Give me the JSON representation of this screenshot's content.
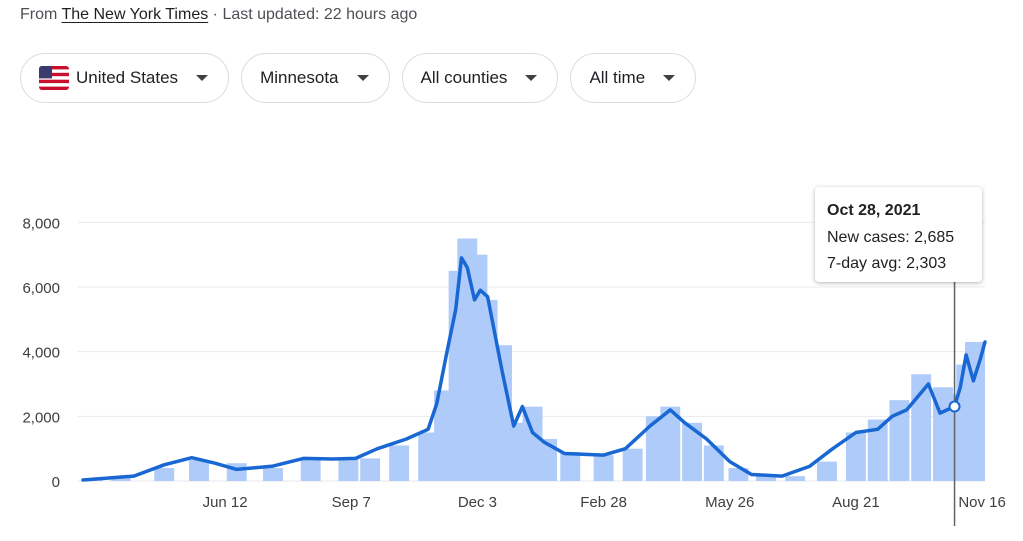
{
  "header": {
    "source_prefix": "From",
    "source_name": "The New York Times",
    "updated": "· Last updated: 22 hours ago"
  },
  "filters": [
    {
      "label": "United States",
      "icon": "us-flag-icon"
    },
    {
      "label": "Minnesota",
      "icon": "chevron-down-icon"
    },
    {
      "label": "All counties",
      "icon": "chevron-down-icon"
    },
    {
      "label": "All time",
      "icon": "chevron-down-icon"
    }
  ],
  "tooltip": {
    "date": "Oct 28, 2021",
    "cases": "New cases: 2,685",
    "avg": "7-day avg: 2,303"
  },
  "colors": {
    "bars": "#aecbfa",
    "line": "#1967d2",
    "grid": "#e8eaed",
    "text": "#3c4043"
  },
  "chart_data": {
    "type": "bar",
    "ylim": [
      0,
      9000
    ],
    "yticks": [
      0,
      2000,
      4000,
      6000,
      8000
    ],
    "ytick_labels": [
      "0",
      "2,000",
      "4,000",
      "6,000",
      "8,000"
    ],
    "x_domain": [
      "2020-03-06",
      "2021-11-18"
    ],
    "xticks": [
      "2020-06-12",
      "2020-09-07",
      "2020-12-03",
      "2021-02-28",
      "2021-05-26",
      "2021-08-21",
      "2021-11-16"
    ],
    "xtick_labels": [
      "Jun 12",
      "Sep 7",
      "Dec 3",
      "Feb 28",
      "May 26",
      "Aug 21",
      "Nov 16"
    ],
    "series": [
      {
        "name": "New cases",
        "kind": "bar",
        "x": [
          "2020-03-06",
          "2020-04-01",
          "2020-05-01",
          "2020-05-25",
          "2020-06-20",
          "2020-07-15",
          "2020-08-10",
          "2020-09-05",
          "2020-09-20",
          "2020-10-10",
          "2020-10-30",
          "2020-11-10",
          "2020-11-20",
          "2020-11-26",
          "2020-12-03",
          "2020-12-10",
          "2020-12-20",
          "2021-01-01",
          "2021-01-10",
          "2021-01-20",
          "2021-02-05",
          "2021-02-28",
          "2021-03-20",
          "2021-04-05",
          "2021-04-15",
          "2021-04-30",
          "2021-05-15",
          "2021-06-01",
          "2021-06-20",
          "2021-07-10",
          "2021-08-01",
          "2021-08-21",
          "2021-09-05",
          "2021-09-20",
          "2021-10-05",
          "2021-10-20",
          "2021-10-28",
          "2021-11-05",
          "2021-11-18"
        ],
        "values": [
          50,
          150,
          400,
          650,
          550,
          400,
          650,
          700,
          700,
          1100,
          1500,
          2800,
          6500,
          7500,
          7000,
          5600,
          4200,
          1800,
          2300,
          1300,
          900,
          800,
          1000,
          2000,
          2300,
          1800,
          1100,
          400,
          200,
          150,
          600,
          1500,
          1900,
          2500,
          3300,
          2900,
          2685,
          3600,
          4300
        ]
      },
      {
        "name": "7-day avg",
        "kind": "line",
        "x": [
          "2020-03-06",
          "2020-04-10",
          "2020-05-01",
          "2020-05-20",
          "2020-06-05",
          "2020-06-20",
          "2020-07-15",
          "2020-08-05",
          "2020-08-25",
          "2020-09-10",
          "2020-09-25",
          "2020-10-15",
          "2020-10-30",
          "2020-11-05",
          "2020-11-12",
          "2020-11-18",
          "2020-11-22",
          "2020-11-26",
          "2020-12-01",
          "2020-12-05",
          "2020-12-10",
          "2020-12-20",
          "2020-12-28",
          "2021-01-03",
          "2021-01-10",
          "2021-01-18",
          "2021-02-01",
          "2021-02-28",
          "2021-03-15",
          "2021-04-01",
          "2021-04-15",
          "2021-04-25",
          "2021-05-10",
          "2021-05-26",
          "2021-06-10",
          "2021-07-01",
          "2021-07-20",
          "2021-08-05",
          "2021-08-21",
          "2021-09-05",
          "2021-09-15",
          "2021-09-25",
          "2021-10-10",
          "2021-10-18",
          "2021-10-28",
          "2021-11-01",
          "2021-11-05",
          "2021-11-10",
          "2021-11-15",
          "2021-11-18"
        ],
        "values": [
          30,
          150,
          500,
          720,
          550,
          360,
          460,
          700,
          680,
          700,
          1000,
          1300,
          1600,
          2400,
          4000,
          5300,
          6900,
          6600,
          5600,
          5900,
          5700,
          3400,
          1700,
          2300,
          1500,
          1200,
          850,
          800,
          1000,
          1700,
          2200,
          1800,
          1300,
          600,
          200,
          150,
          450,
          1000,
          1500,
          1600,
          2000,
          2200,
          3000,
          2100,
          2303,
          2900,
          3900,
          3100,
          3800,
          4300
        ]
      }
    ]
  }
}
